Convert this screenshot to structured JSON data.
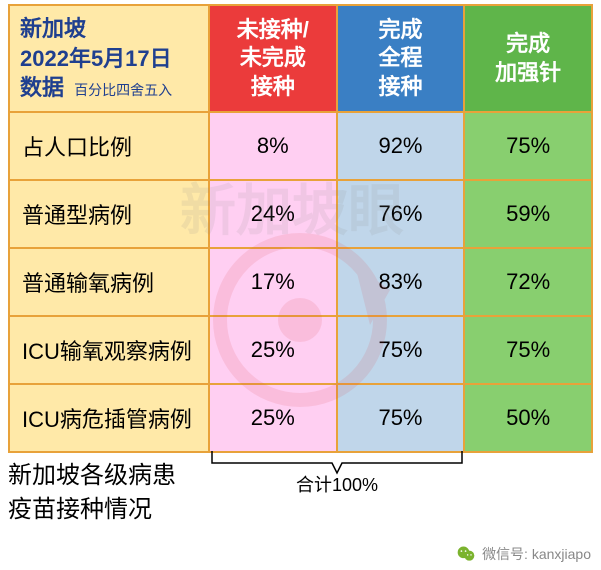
{
  "header": {
    "title_line1": "新加坡",
    "title_line2": "2022年5月17日",
    "title_line3": "数据",
    "title_note": "百分比四舍五入",
    "title_bg": "#ffe9a8",
    "title_color": "#1f3f8f",
    "columns": [
      {
        "label_line1": "未接种/",
        "label_line2": "未完成",
        "label_line3": "接种",
        "bg": "#eb3b3b"
      },
      {
        "label_line1": "完成",
        "label_line2": "全程",
        "label_line3": "接种",
        "bg": "#3a7fc4"
      },
      {
        "label_line1": "完成",
        "label_line2": "加强针",
        "bg": "#5fb54a"
      }
    ],
    "header_text_color": "#ffffff"
  },
  "body_colors": {
    "rowlabel_bg": "#ffe9a8",
    "col1_bg": "#ffcff2",
    "col2_bg": "#c0d6ea",
    "col3_bg": "#88cf6f",
    "border_color": "#e8a23a"
  },
  "rows": [
    {
      "label": "占人口比例",
      "v1": "8%",
      "v2": "92%",
      "v3": "75%"
    },
    {
      "label": "普通型病例",
      "v1": "24%",
      "v2": "76%",
      "v3": "59%"
    },
    {
      "label": "普通输氧病例",
      "v1": "17%",
      "v2": "83%",
      "v3": "72%"
    },
    {
      "label": "ICU输氧观察病例",
      "v1": "25%",
      "v2": "75%",
      "v3": "75%"
    },
    {
      "label": "ICU病危插管病例",
      "v1": "25%",
      "v2": "75%",
      "v3": "50%"
    }
  ],
  "footer": {
    "sum_label": "合计100%",
    "caption_line1": "新加坡各级病患",
    "caption_line2": "疫苗接种情况",
    "wechat_label": "微信号: kanxjiapo"
  }
}
